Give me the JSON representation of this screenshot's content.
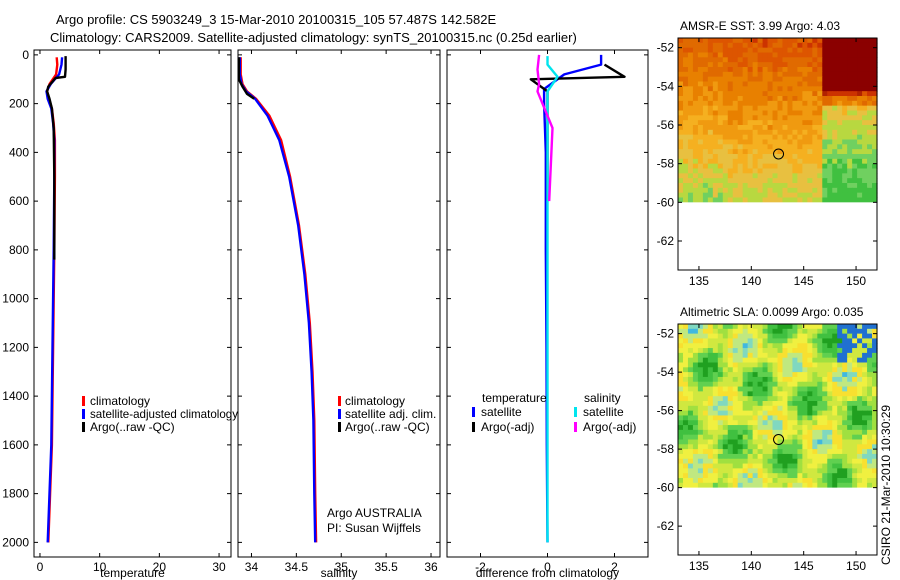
{
  "header": {
    "line1": "Argo profile: CS 5903249_3 15-Mar-2010 20100315_105 57.487S 142.582E",
    "line2": "Climatology: CARS2009. Satellite-adjusted climatology: synTS_20100315.nc (0.25d earlier)"
  },
  "colors": {
    "climatology": "#ff0000",
    "satellite": "#0000ff",
    "argo": "#000000",
    "sal_satellite": "#00e5ee",
    "sal_argo": "#ff00ff"
  },
  "chart_data": [
    {
      "type": "line",
      "name": "temperature",
      "xlabel": "temperature",
      "ylabel": "",
      "xlim": [
        -1,
        32
      ],
      "ylim": [
        2060,
        -20
      ],
      "xticks": [
        0,
        10,
        20,
        30
      ],
      "yticks": [
        0,
        200,
        400,
        600,
        800,
        1000,
        1200,
        1400,
        1600,
        1800,
        2000
      ],
      "legend": [
        "climatology",
        "satellite-adjusted climatology",
        "Argo(..raw -QC)"
      ],
      "series": [
        {
          "name": "climatology",
          "color": "#ff0000",
          "points": [
            [
              2.8,
              10
            ],
            [
              2.9,
              40
            ],
            [
              2.7,
              80
            ],
            [
              1.6,
              120
            ],
            [
              1.2,
              150
            ],
            [
              1.5,
              180
            ],
            [
              2.0,
              220
            ],
            [
              2.3,
              280
            ],
            [
              2.5,
              350
            ],
            [
              2.5,
              500
            ],
            [
              2.4,
              800
            ],
            [
              2.2,
              1200
            ],
            [
              2.0,
              1600
            ],
            [
              1.7,
              1800
            ],
            [
              1.4,
              2000
            ]
          ]
        },
        {
          "name": "satellite-adjusted climatology",
          "color": "#0000ff",
          "points": [
            [
              3.7,
              10
            ],
            [
              3.6,
              40
            ],
            [
              3.2,
              80
            ],
            [
              1.8,
              120
            ],
            [
              1.1,
              150
            ],
            [
              1.3,
              180
            ],
            [
              1.9,
              220
            ],
            [
              2.2,
              280
            ],
            [
              2.4,
              350
            ],
            [
              2.4,
              500
            ],
            [
              2.3,
              800
            ],
            [
              2.1,
              1200
            ],
            [
              1.9,
              1600
            ],
            [
              1.6,
              1800
            ],
            [
              1.3,
              2000
            ]
          ]
        },
        {
          "name": "Argo(..raw -QC)",
          "color": "#000000",
          "points": [
            [
              4.3,
              5
            ],
            [
              4.3,
              60
            ],
            [
              4.2,
              90
            ],
            [
              2.6,
              95
            ],
            [
              1.4,
              130
            ],
            [
              1.2,
              150
            ],
            [
              1.6,
              180
            ],
            [
              2.0,
              220
            ],
            [
              2.3,
              300
            ],
            [
              2.4,
              500
            ],
            [
              2.4,
              840
            ]
          ]
        }
      ]
    },
    {
      "type": "line",
      "name": "salinity",
      "xlabel": "salinity",
      "ylabel": "",
      "xlim": [
        33.85,
        36.1
      ],
      "ylim": [
        2060,
        -20
      ],
      "xticks": [
        34,
        34.5,
        35,
        35.5,
        36
      ],
      "legend": [
        "climatology",
        "satellite adj. clim.",
        "Argo(..raw -QC)"
      ],
      "annotation": [
        "Argo AUSTRALIA",
        "PI: Susan Wijffels"
      ],
      "series": [
        {
          "name": "climatology",
          "color": "#ff0000",
          "points": [
            [
              33.88,
              10
            ],
            [
              33.88,
              80
            ],
            [
              33.9,
              120
            ],
            [
              33.95,
              150
            ],
            [
              34.05,
              180
            ],
            [
              34.2,
              250
            ],
            [
              34.33,
              350
            ],
            [
              34.43,
              500
            ],
            [
              34.53,
              700
            ],
            [
              34.6,
              900
            ],
            [
              34.65,
              1100
            ],
            [
              34.68,
              1300
            ],
            [
              34.7,
              1500
            ],
            [
              34.71,
              1800
            ],
            [
              34.72,
              2000
            ]
          ]
        },
        {
          "name": "satellite adj. clim.",
          "color": "#0000ff",
          "points": [
            [
              33.87,
              10
            ],
            [
              33.87,
              80
            ],
            [
              33.89,
              120
            ],
            [
              33.94,
              150
            ],
            [
              34.04,
              180
            ],
            [
              34.18,
              250
            ],
            [
              34.31,
              350
            ],
            [
              34.42,
              500
            ],
            [
              34.52,
              700
            ],
            [
              34.59,
              900
            ],
            [
              34.64,
              1100
            ],
            [
              34.67,
              1300
            ],
            [
              34.69,
              1500
            ],
            [
              34.7,
              1800
            ],
            [
              34.71,
              2000
            ]
          ]
        },
        {
          "name": "Argo(..raw -QC)",
          "color": "#000000",
          "points": [
            [
              33.86,
              10
            ],
            [
              33.86,
              100
            ],
            [
              33.9,
              130
            ],
            [
              33.95,
              160
            ],
            [
              34.03,
              180
            ]
          ]
        }
      ]
    },
    {
      "type": "line",
      "name": "difference",
      "xlabel": "difference from climatology",
      "ylabel": "",
      "xlim": [
        -3,
        3
      ],
      "ylim": [
        2060,
        -20
      ],
      "xticks": [
        -2,
        0,
        2
      ],
      "legend_headers": [
        "temperature",
        "salinity"
      ],
      "legend": [
        "satellite",
        "Argo(-adj)",
        "satellite",
        "Argo(-adj)"
      ],
      "series": [
        {
          "name": "temperature satellite",
          "color": "#0000ff",
          "points": [
            [
              1.6,
              0
            ],
            [
              1.6,
              40
            ],
            [
              0.5,
              80
            ],
            [
              -0.1,
              140
            ],
            [
              -0.1,
              200
            ],
            [
              -0.05,
              400
            ],
            [
              -0.05,
              800
            ],
            [
              -0.03,
              1200
            ],
            [
              -0.02,
              1600
            ],
            [
              0,
              2000
            ]
          ]
        },
        {
          "name": "temperature Argo(-adj)",
          "color": "#000000",
          "points": [
            [
              1.7,
              40
            ],
            [
              2.3,
              90
            ],
            [
              -0.5,
              100
            ],
            [
              0,
              150
            ],
            [
              0,
              200
            ],
            [
              0,
              600
            ]
          ]
        },
        {
          "name": "salinity satellite",
          "color": "#00e5ee",
          "points": [
            [
              0,
              5
            ],
            [
              0,
              40
            ],
            [
              0.3,
              90
            ],
            [
              0,
              150
            ],
            [
              0,
              200
            ],
            [
              0,
              600
            ],
            [
              0,
              1000
            ],
            [
              0,
              1400
            ],
            [
              0,
              1800
            ],
            [
              0,
              2000
            ]
          ]
        },
        {
          "name": "salinity Argo(-adj)",
          "color": "#ff00ff",
          "points": [
            [
              -0.25,
              0
            ],
            [
              -0.3,
              60
            ],
            [
              -0.25,
              120
            ],
            [
              -0.3,
              150
            ],
            [
              0.15,
              300
            ],
            [
              0.05,
              600
            ]
          ]
        }
      ]
    },
    {
      "type": "heatmap",
      "name": "sst-map",
      "title": "AMSR-E SST: 3.99 Argo: 4.03",
      "xlim": [
        133,
        152
      ],
      "ylim": [
        -63.5,
        -51.5
      ],
      "xticks": [
        135,
        140,
        145,
        150
      ],
      "xtick_labels": [
        "135",
        "140",
        "145",
        "150"
      ],
      "yticks": [
        -52,
        -54,
        -56,
        -58,
        -60,
        -62
      ],
      "ytick_labels": [
        "-52",
        "-54",
        "-56",
        "-58",
        "-60",
        "-62"
      ],
      "marker": {
        "lon": 142.6,
        "lat": -57.5
      },
      "data_extent_lat": [
        -60,
        -51.5
      ]
    },
    {
      "type": "heatmap",
      "name": "sla-map",
      "title": "Altimetric SLA: 0.0099 Argo: 0.035",
      "xlim": [
        133,
        152
      ],
      "ylim": [
        -63.5,
        -51.5
      ],
      "xticks": [
        135,
        140,
        145,
        150
      ],
      "xtick_labels": [
        "135",
        "140",
        "145",
        "150"
      ],
      "yticks": [
        -52,
        -54,
        -56,
        -58,
        -60,
        -62
      ],
      "ytick_labels": [
        "-52",
        "-54",
        "-56",
        "-58",
        "-60",
        "-62"
      ],
      "marker": {
        "lon": 142.6,
        "lat": -57.5
      },
      "data_extent_lat": [
        -60,
        -51.5
      ]
    }
  ],
  "text": {
    "temp_legend": [
      "climatology",
      "satellite-adjusted climatology",
      "Argo(..raw -QC)"
    ],
    "sal_legend": [
      "climatology",
      "satellite adj. clim.",
      "Argo(..raw -QC)"
    ],
    "sal_annotation1": "Argo AUSTRALIA",
    "sal_annotation2": "PI: Susan Wijffels",
    "diff_head_temp": "temperature",
    "diff_head_sal": "salinity",
    "diff_t_sat": "satellite",
    "diff_t_argo": "Argo(-adj)",
    "diff_s_sat": "satellite",
    "diff_s_argo": "Argo(-adj)",
    "sst_title": "AMSR-E SST: 3.99 Argo: 4.03",
    "sla_title": "Altimetric SLA: 0.0099 Argo: 0.035",
    "footer_stamp": "CSIRO 21-Mar-2010 10:30:29"
  }
}
